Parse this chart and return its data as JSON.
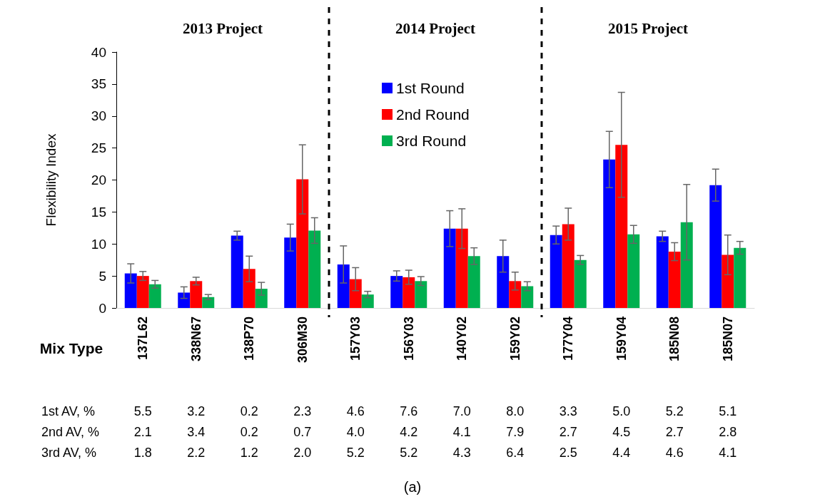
{
  "chart_data": {
    "type": "bar",
    "ylabel": "Flexibility Index",
    "categories": [
      "137L62",
      "338N67",
      "138P70",
      "306M30",
      "157Y03",
      "156Y03",
      "140Y02",
      "159Y02",
      "177Y04",
      "159Y04",
      "185N08",
      "185N07"
    ],
    "series": [
      {
        "name": "1st Round",
        "color": "#0000ff",
        "values": [
          5.4,
          2.4,
          11.3,
          11.0,
          6.8,
          5.0,
          12.4,
          8.1,
          11.4,
          23.2,
          11.2,
          19.2
        ],
        "errors": [
          1.5,
          0.9,
          0.7,
          2.1,
          2.9,
          0.8,
          2.8,
          2.5,
          1.4,
          4.4,
          0.8,
          2.5
        ]
      },
      {
        "name": "2nd Round",
        "color": "#ff0000",
        "values": [
          5.0,
          4.2,
          6.1,
          20.1,
          4.5,
          4.8,
          12.4,
          4.2,
          13.1,
          25.5,
          8.8,
          8.3
        ],
        "errors": [
          0.7,
          0.6,
          2.0,
          5.4,
          1.8,
          1.1,
          3.1,
          1.4,
          2.5,
          8.2,
          1.4,
          3.1
        ]
      },
      {
        "name": "3rd Round",
        "color": "#00b050",
        "values": [
          3.7,
          1.7,
          3.0,
          12.1,
          2.1,
          4.2,
          8.1,
          3.4,
          7.5,
          11.5,
          13.4,
          9.4
        ],
        "errors": [
          0.6,
          0.4,
          1.0,
          2.0,
          0.5,
          0.7,
          1.3,
          0.7,
          0.7,
          1.4,
          5.9,
          1.0
        ]
      }
    ],
    "ylim": [
      0,
      40
    ],
    "yticks": [
      0,
      5,
      10,
      15,
      20,
      25,
      30,
      35,
      40
    ],
    "grid": false,
    "legend": "top",
    "annotations": [
      "2013 Project",
      "2014 Project",
      "2015 Project",
      "Mix Type",
      "1st AV, %",
      "5.5",
      "3.2",
      "0.2",
      "2.3",
      "4.6",
      "7.6",
      "7.0",
      "8.0",
      "3.3",
      "5.0",
      "5.2",
      "5.1",
      "2nd AV, %",
      "2.1",
      "3.4",
      "0.2",
      "0.7",
      "4.0",
      "4.2",
      "4.1",
      "7.9",
      "2.7",
      "4.5",
      "2.7",
      "2.8",
      "3rd AV, %",
      "1.8",
      "2.2",
      "1.2",
      "2.0",
      "5.2",
      "5.2",
      "4.3",
      "6.4",
      "2.5",
      "4.4",
      "4.6",
      "4.1",
      "(a)"
    ]
  }
}
